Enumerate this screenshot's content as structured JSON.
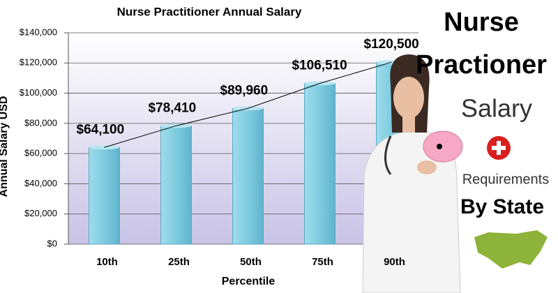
{
  "chart_data": {
    "type": "bar",
    "title": "Nurse Practitioner Annual Salary",
    "x_label": "Percentile",
    "y_label": "Annual Salary USD",
    "categories": [
      "10th",
      "25th",
      "50th",
      "75th",
      "90th"
    ],
    "values": [
      64100,
      78410,
      89960,
      106510,
      120500
    ],
    "value_labels": [
      "$64,100",
      "$78,410",
      "$89,960",
      "$106,510",
      "$120,500"
    ],
    "color": "#7ecbe0",
    "ylim": [
      0,
      140000
    ],
    "yticks": [
      {
        "value": 0,
        "label": "$0"
      },
      {
        "value": 20000,
        "label": "$20,000"
      },
      {
        "value": 40000,
        "label": "$40,000"
      },
      {
        "value": 60000,
        "label": "$60,000"
      },
      {
        "value": 80000,
        "label": "$80,000"
      },
      {
        "value": 100000,
        "label": "$100,000"
      },
      {
        "value": 120000,
        "label": "$120,000"
      },
      {
        "value": 140000,
        "label": "$140,000"
      }
    ],
    "grid": true
  },
  "side_panel": {
    "lines": [
      "Nurse",
      "Practioner",
      "Salary",
      "Requirements",
      "By State"
    ]
  }
}
